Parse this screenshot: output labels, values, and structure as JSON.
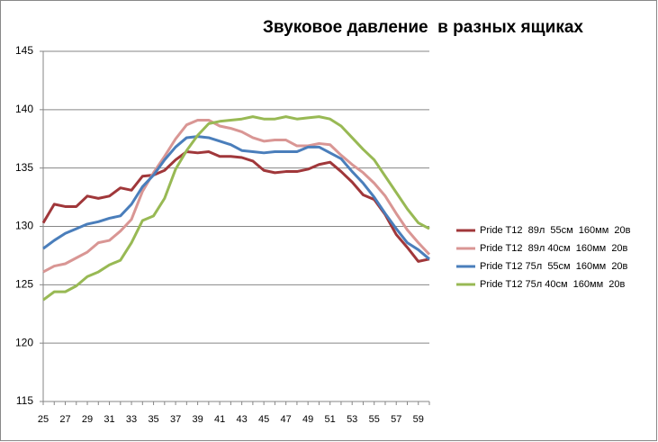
{
  "chart_data": {
    "type": "line",
    "title": "Звуковое давление  в разных ящиках",
    "categories": [
      25,
      null,
      27,
      null,
      29,
      null,
      31,
      null,
      33,
      null,
      35,
      null,
      37,
      null,
      39,
      null,
      41,
      null,
      43,
      null,
      45,
      null,
      47,
      null,
      49,
      null,
      51,
      null,
      53,
      null,
      55,
      null,
      57,
      null,
      59,
      null
    ],
    "series": [
      {
        "name": "Pride T12  89л  55см  160мм  20в",
        "color": "#a0373a",
        "values": [
          130.3,
          131.9,
          131.7,
          131.7,
          132.6,
          132.4,
          132.6,
          133.3,
          133.1,
          134.3,
          134.4,
          134.8,
          135.7,
          136.4,
          136.3,
          136.4,
          136.0,
          136.0,
          135.9,
          135.6,
          134.8,
          134.6,
          134.7,
          134.7,
          134.9,
          135.3,
          135.5,
          134.7,
          133.8,
          132.7,
          132.3,
          131.0,
          129.3,
          128.2,
          127.0,
          127.2
        ]
      },
      {
        "name": "Pride T12  89л 40см  160мм  20в",
        "color": "#d99694",
        "values": [
          126.1,
          126.6,
          126.8,
          127.3,
          127.8,
          128.6,
          128.8,
          129.6,
          130.6,
          133.0,
          134.6,
          136.0,
          137.5,
          138.7,
          139.1,
          139.1,
          138.6,
          138.4,
          138.1,
          137.6,
          137.3,
          137.4,
          137.4,
          136.9,
          136.9,
          137.1,
          137.0,
          136.1,
          135.3,
          134.6,
          133.7,
          132.6,
          131.1,
          129.7,
          128.6,
          127.6
        ]
      },
      {
        "name": "Pride T12 75л  55см  160мм  20в",
        "color": "#4a7ebb",
        "values": [
          128.1,
          128.8,
          129.4,
          129.8,
          130.2,
          130.4,
          130.7,
          130.9,
          131.9,
          133.4,
          134.4,
          135.7,
          136.8,
          137.6,
          137.7,
          137.6,
          137.3,
          137.0,
          136.5,
          136.4,
          136.3,
          136.4,
          136.4,
          136.4,
          136.8,
          136.8,
          136.3,
          135.8,
          134.7,
          133.7,
          132.5,
          131.1,
          129.8,
          128.6,
          128.0,
          127.2
        ]
      },
      {
        "name": "Pride T12 75л 40см  160мм  20в",
        "color": "#98b954",
        "values": [
          123.7,
          124.4,
          124.4,
          124.9,
          125.7,
          126.1,
          126.7,
          127.1,
          128.6,
          130.5,
          130.9,
          132.4,
          134.9,
          136.5,
          137.8,
          138.8,
          139.0,
          139.1,
          139.2,
          139.4,
          139.2,
          139.2,
          139.4,
          139.2,
          139.3,
          139.4,
          139.2,
          138.6,
          137.6,
          136.6,
          135.7,
          134.3,
          132.9,
          131.5,
          130.3,
          129.8
        ]
      }
    ],
    "ylim": [
      115,
      145
    ],
    "yticks": [
      115,
      120,
      125,
      130,
      135,
      140,
      145
    ],
    "grid": true,
    "legend": "right"
  }
}
